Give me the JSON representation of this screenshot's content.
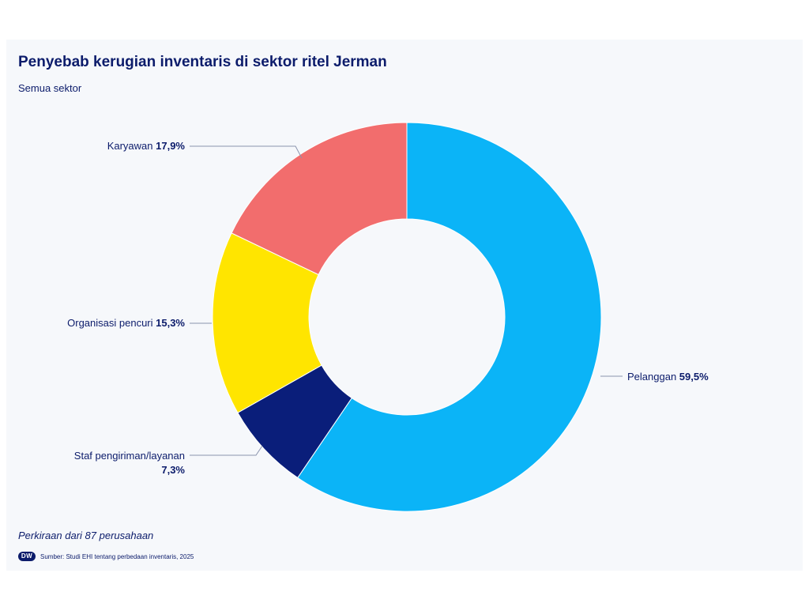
{
  "header": {
    "title": "Penyebab kerugian inventaris di sektor ritel Jerman",
    "subtitle": "Semua sektor"
  },
  "footer": {
    "note": "Perkiraan dari 87 perusahaan",
    "logo_text": "DW",
    "source": "Sumber: Studi EHI tentang perbedaan inventaris, 2025"
  },
  "colors": {
    "pelanggan": "#0bb4f7",
    "staf": "#0a1e7a",
    "organisasi": "#ffe500",
    "karyawan": "#f26d6d",
    "text": "#0c1c6b",
    "leader": "#8a93ad"
  },
  "chart_data": {
    "type": "pie",
    "variant": "donut",
    "title": "Penyebab kerugian inventaris di sektor ritel Jerman",
    "subtitle": "Semua sektor",
    "unit": "%",
    "slices": [
      {
        "key": "pelanggan",
        "name": "Pelanggan",
        "value": 59.5,
        "display": "59,5%",
        "color": "#0bb4f7"
      },
      {
        "key": "staf",
        "name": "Staf pengiriman/layanan",
        "value": 7.3,
        "display": "7,3%",
        "color": "#0a1e7a"
      },
      {
        "key": "organisasi",
        "name": "Organisasi pencuri",
        "value": 15.3,
        "display": "15,3%",
        "color": "#ffe500"
      },
      {
        "key": "karyawan",
        "name": "Karyawan",
        "value": 17.9,
        "display": "17,9%",
        "color": "#f26d6d"
      }
    ]
  }
}
